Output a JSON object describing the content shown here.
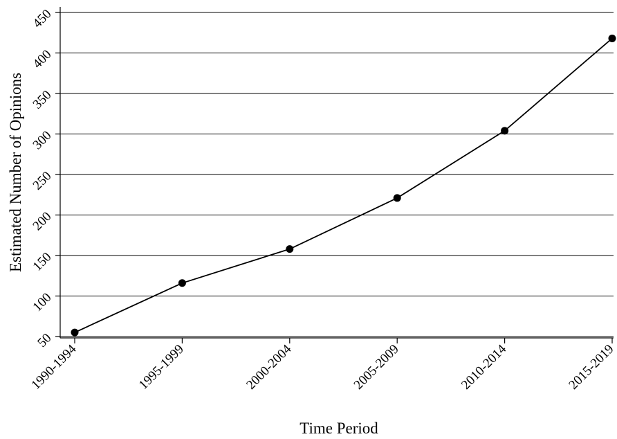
{
  "chart_data": {
    "type": "line",
    "title": "",
    "xlabel": "Time Period",
    "ylabel": "Estimated Number of Opinions",
    "categories": [
      "1990-1994",
      "1995-1999",
      "2000-2004",
      "2005-2009",
      "2010-2014",
      "2015-2019"
    ],
    "series": [
      {
        "values": [
          55,
          116,
          158,
          221,
          304,
          418
        ]
      }
    ],
    "ylim": [
      45,
      450
    ],
    "yticks": [
      50,
      100,
      150,
      200,
      250,
      300,
      350,
      400,
      450
    ],
    "grid": "horizontal",
    "legend": "none",
    "colors": {
      "line": "#000000",
      "marker": "#000000",
      "grid": "#000000",
      "background": "#ffffff"
    }
  }
}
